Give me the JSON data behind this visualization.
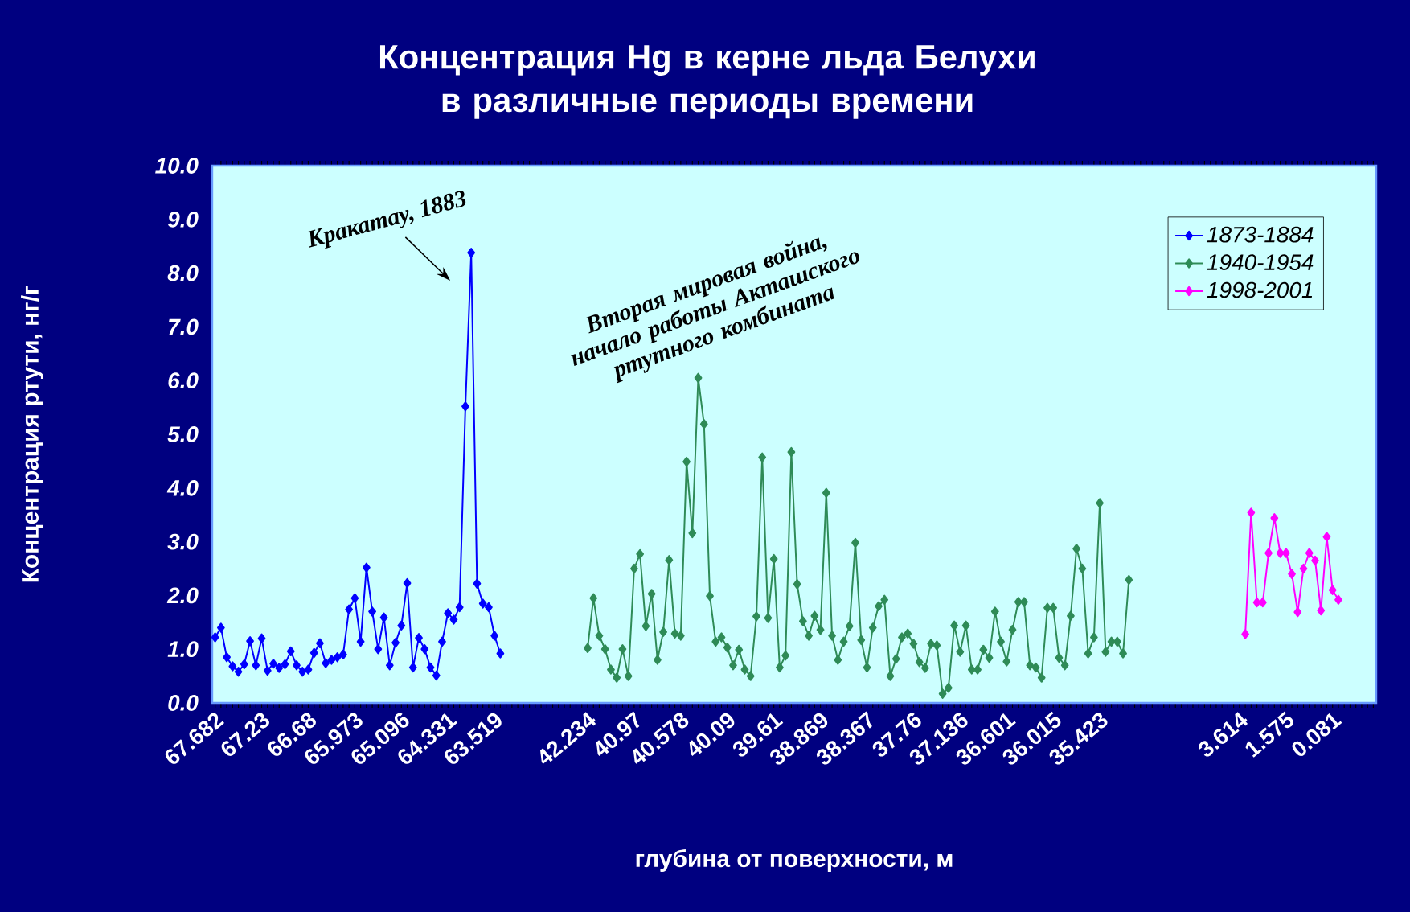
{
  "chart_data": {
    "type": "line",
    "title": "Концентрация Hg в керне льда Белухи в различные периоды времени",
    "xlabel": "глубина от поверхности, м",
    "ylabel": "Концентрация ртути, нг/г",
    "annotations": [
      "Кракатау, 1883",
      "Вторая мировая война, начало работы Акташского ртутного комбината"
    ],
    "marker": "diamond",
    "legend": "top right",
    "ylim": [
      0,
      10
    ],
    "yticks": [
      {
        "value": 0,
        "label": "0.0"
      },
      {
        "value": 1,
        "label": "1.0"
      },
      {
        "value": 2,
        "label": "2.0"
      },
      {
        "value": 3,
        "label": "3.0"
      },
      {
        "value": 4,
        "label": "4.0"
      },
      {
        "value": 5,
        "label": "5.0"
      },
      {
        "value": 6,
        "label": "6.0"
      },
      {
        "value": 7,
        "label": "7.0"
      },
      {
        "value": 8,
        "label": "8.0"
      },
      {
        "value": 9,
        "label": "9.0"
      },
      {
        "value": 10,
        "label": "10.0"
      }
    ],
    "categories": [
      "67.682",
      null,
      null,
      null,
      null,
      null,
      null,
      null,
      "67.23",
      null,
      null,
      null,
      null,
      null,
      null,
      null,
      "66.68",
      null,
      null,
      null,
      null,
      null,
      null,
      null,
      "65.973",
      null,
      null,
      null,
      null,
      null,
      null,
      null,
      "65.096",
      null,
      null,
      null,
      null,
      null,
      null,
      null,
      "64.331",
      null,
      null,
      null,
      null,
      null,
      null,
      null,
      "63.519",
      null,
      null,
      null,
      null,
      null,
      null,
      null,
      null,
      null,
      null,
      null,
      null,
      null,
      null,
      null,
      "42.234",
      null,
      null,
      null,
      null,
      null,
      null,
      null,
      "40.97",
      null,
      null,
      null,
      null,
      null,
      null,
      null,
      "40.578",
      null,
      null,
      null,
      null,
      null,
      null,
      null,
      "40.09",
      null,
      null,
      null,
      null,
      null,
      null,
      null,
      "39.61",
      null,
      null,
      null,
      null,
      null,
      null,
      null,
      "38.869",
      null,
      null,
      null,
      null,
      null,
      null,
      null,
      "38.367",
      null,
      null,
      null,
      null,
      null,
      null,
      null,
      "37.76",
      null,
      null,
      null,
      null,
      null,
      null,
      null,
      "37.136",
      null,
      null,
      null,
      null,
      null,
      null,
      null,
      "36.601",
      null,
      null,
      null,
      null,
      null,
      null,
      null,
      "36.015",
      null,
      null,
      null,
      null,
      null,
      null,
      null,
      "35.423",
      null,
      null,
      null,
      null,
      null,
      null,
      null,
      null,
      null,
      null,
      null,
      null,
      null,
      null,
      null,
      null,
      null,
      null,
      null,
      null,
      null,
      null,
      null,
      "3.614",
      null,
      null,
      null,
      null,
      null,
      null,
      null,
      "1.575",
      null,
      null,
      null,
      null,
      null,
      null,
      null,
      "0.081",
      null,
      null,
      null,
      null,
      null,
      null,
      null
    ],
    "series": [
      {
        "name": "1873-1884",
        "color": "#0000ff",
        "values": [
          1.22,
          1.4,
          0.85,
          0.68,
          0.58,
          0.72,
          1.15,
          0.7,
          1.2,
          0.6,
          0.73,
          0.65,
          0.72,
          0.96,
          0.7,
          0.58,
          0.62,
          0.93,
          1.11,
          0.74,
          0.8,
          0.85,
          0.9,
          1.74,
          1.95,
          1.14,
          2.52,
          1.7,
          1.0,
          1.59,
          0.7,
          1.12,
          1.44,
          2.23,
          0.66,
          1.21,
          1.0,
          0.66,
          0.51,
          1.14,
          1.67,
          1.55,
          1.78,
          5.52,
          8.38,
          2.22,
          1.85,
          1.78,
          1.25,
          0.92,
          null,
          null,
          null,
          null,
          null,
          null,
          null,
          null,
          null,
          null,
          null,
          null,
          null,
          null,
          null,
          null,
          null,
          null,
          null,
          null,
          null,
          null,
          null,
          null,
          null,
          null,
          null,
          null,
          null,
          null,
          null,
          null,
          null,
          null,
          null,
          null,
          null,
          null,
          null,
          null,
          null,
          null,
          null,
          null,
          null,
          null,
          null,
          null,
          null,
          null,
          null,
          null,
          null,
          null,
          null,
          null,
          null,
          null,
          null,
          null,
          null,
          null,
          null,
          null,
          null,
          null,
          null,
          null,
          null,
          null,
          null,
          null,
          null,
          null,
          null,
          null,
          null,
          null,
          null,
          null,
          null,
          null,
          null,
          null,
          null,
          null,
          null,
          null,
          null,
          null,
          null,
          null,
          null,
          null,
          null,
          null,
          null,
          null,
          null,
          null,
          null,
          null,
          null,
          null,
          null,
          null,
          null,
          null,
          null,
          null,
          null,
          null,
          null,
          null,
          null,
          null,
          null,
          null,
          null,
          null,
          null,
          null,
          null,
          null,
          null,
          null,
          null,
          null,
          null,
          null,
          null,
          null,
          null,
          null,
          null,
          null,
          null,
          null,
          null,
          null,
          null,
          null,
          null,
          null,
          null,
          null,
          null,
          null,
          null,
          null
        ]
      },
      {
        "name": "1940-1954",
        "color": "#2e8b57",
        "values": [
          null,
          null,
          null,
          null,
          null,
          null,
          null,
          null,
          null,
          null,
          null,
          null,
          null,
          null,
          null,
          null,
          null,
          null,
          null,
          null,
          null,
          null,
          null,
          null,
          null,
          null,
          null,
          null,
          null,
          null,
          null,
          null,
          null,
          null,
          null,
          null,
          null,
          null,
          null,
          null,
          null,
          null,
          null,
          null,
          null,
          null,
          null,
          null,
          null,
          null,
          null,
          null,
          null,
          null,
          null,
          null,
          null,
          null,
          null,
          null,
          null,
          null,
          null,
          null,
          1.02,
          1.95,
          1.25,
          1.0,
          0.62,
          0.47,
          1.0,
          0.5,
          2.5,
          2.77,
          1.43,
          2.03,
          0.8,
          1.32,
          2.66,
          1.29,
          1.25,
          4.49,
          3.16,
          6.05,
          5.19,
          1.99,
          1.14,
          1.22,
          1.03,
          0.7,
          0.99,
          0.62,
          0.5,
          1.61,
          4.57,
          1.58,
          2.68,
          0.66,
          0.88,
          4.67,
          2.21,
          1.52,
          1.25,
          1.62,
          1.36,
          3.91,
          1.25,
          0.8,
          1.14,
          1.43,
          2.98,
          1.17,
          0.66,
          1.4,
          1.8,
          1.92,
          0.5,
          0.82,
          1.22,
          1.29,
          1.1,
          0.76,
          0.65,
          1.1,
          1.07,
          0.17,
          0.28,
          1.44,
          0.95,
          1.44,
          0.62,
          0.62,
          0.99,
          0.84,
          1.7,
          1.14,
          0.77,
          1.36,
          1.88,
          1.88,
          0.7,
          0.66,
          0.47,
          1.77,
          1.77,
          0.84,
          0.7,
          1.62,
          2.87,
          2.5,
          0.92,
          1.22,
          3.72,
          0.95,
          1.14,
          1.14,
          0.92,
          2.29,
          null,
          null,
          null,
          null,
          null,
          null,
          null,
          null,
          null,
          null,
          null,
          null,
          null,
          null,
          null,
          null,
          null,
          null,
          null,
          null,
          null,
          null,
          null,
          null,
          null,
          null,
          null,
          null,
          null,
          null,
          null,
          null,
          null,
          null,
          null,
          null,
          null,
          null,
          null,
          null,
          null,
          null
        ]
      },
      {
        "name": "1998-2001",
        "color": "#ff00ff",
        "values": [
          null,
          null,
          null,
          null,
          null,
          null,
          null,
          null,
          null,
          null,
          null,
          null,
          null,
          null,
          null,
          null,
          null,
          null,
          null,
          null,
          null,
          null,
          null,
          null,
          null,
          null,
          null,
          null,
          null,
          null,
          null,
          null,
          null,
          null,
          null,
          null,
          null,
          null,
          null,
          null,
          null,
          null,
          null,
          null,
          null,
          null,
          null,
          null,
          null,
          null,
          null,
          null,
          null,
          null,
          null,
          null,
          null,
          null,
          null,
          null,
          null,
          null,
          null,
          null,
          null,
          null,
          null,
          null,
          null,
          null,
          null,
          null,
          null,
          null,
          null,
          null,
          null,
          null,
          null,
          null,
          null,
          null,
          null,
          null,
          null,
          null,
          null,
          null,
          null,
          null,
          null,
          null,
          null,
          null,
          null,
          null,
          null,
          null,
          null,
          null,
          null,
          null,
          null,
          null,
          null,
          null,
          null,
          null,
          null,
          null,
          null,
          null,
          null,
          null,
          null,
          null,
          null,
          null,
          null,
          null,
          null,
          null,
          null,
          null,
          null,
          null,
          null,
          null,
          null,
          null,
          null,
          null,
          null,
          null,
          null,
          null,
          null,
          null,
          null,
          null,
          null,
          null,
          null,
          null,
          null,
          null,
          null,
          null,
          null,
          null,
          null,
          null,
          null,
          null,
          null,
          null,
          null,
          null,
          null,
          null,
          null,
          null,
          null,
          null,
          null,
          null,
          null,
          null,
          null,
          null,
          null,
          null,
          null,
          null,
          null,
          null,
          null,
          1.28,
          3.54,
          1.87,
          1.87,
          2.79,
          3.44,
          2.79,
          2.79,
          2.4,
          1.69,
          2.5,
          2.79,
          2.65,
          1.72,
          3.09,
          2.1,
          1.92,
          null,
          null,
          null,
          null,
          null,
          null
        ]
      }
    ]
  }
}
